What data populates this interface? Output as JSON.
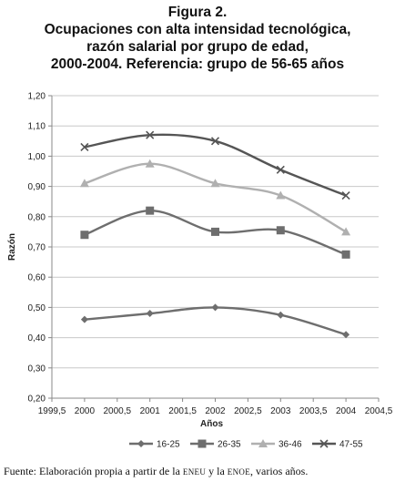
{
  "figure_label": "Figura 2.",
  "title_lines": [
    "Ocupaciones con alta intensidad tecnológica,",
    "razón salarial por grupo de edad,",
    "2000-2004. Referencia: grupo de 56-65 años"
  ],
  "source": {
    "prefix": "Fuente: Elaboración propia a partir de la ",
    "abbr1": "ENEU",
    "middle": " y la ",
    "abbr2": "ENOE",
    "suffix": ", varios años."
  },
  "chart_data": {
    "type": "line",
    "xlabel": "Años",
    "ylabel": "Razón",
    "xlim": [
      1999.5,
      2004.5
    ],
    "ylim": [
      0.2,
      1.2
    ],
    "x_ticks": [
      "1999,5",
      "2000",
      "2000,5",
      "2001",
      "2001,5",
      "2002",
      "2002,5",
      "2003",
      "2003,5",
      "2004",
      "2004,5"
    ],
    "y_ticks": [
      "0,20",
      "0,30",
      "0,40",
      "0,50",
      "0,60",
      "0,70",
      "0,80",
      "0,90",
      "1,00",
      "1,10",
      "1,20"
    ],
    "x": [
      2000,
      2001,
      2002,
      2003,
      2004
    ],
    "grid": "horizontal",
    "legend_position": "bottom",
    "series": [
      {
        "name": "16-25",
        "values": [
          0.46,
          0.48,
          0.5,
          0.475,
          0.41
        ],
        "color": "#6e6e6e",
        "marker": "diamond"
      },
      {
        "name": "26-35",
        "values": [
          0.74,
          0.82,
          0.75,
          0.755,
          0.675
        ],
        "color": "#6e6e6e",
        "marker": "square"
      },
      {
        "name": "36-46",
        "values": [
          0.91,
          0.975,
          0.91,
          0.87,
          0.75
        ],
        "color": "#b0b0b0",
        "marker": "triangle"
      },
      {
        "name": "47-55",
        "values": [
          1.03,
          1.07,
          1.05,
          0.955,
          0.87
        ],
        "color": "#555555",
        "marker": "x"
      }
    ]
  }
}
